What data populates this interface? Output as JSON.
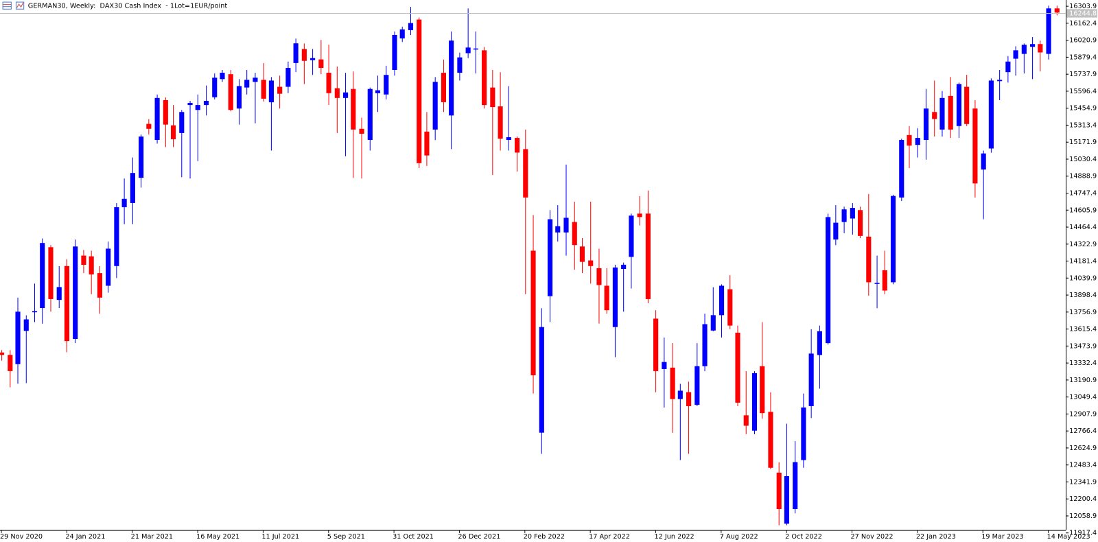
{
  "chart_data": {
    "type": "candlestick",
    "title": "GERMAN30, Weekly:  DAX30 Cash Index  - 1Lot=1EUR/point",
    "categories": [
      "29 Nov 2020",
      null,
      null,
      null,
      null,
      null,
      null,
      null,
      "24 Jan 2021",
      null,
      null,
      null,
      null,
      null,
      null,
      null,
      "21 Mar 2021",
      null,
      null,
      null,
      null,
      null,
      null,
      null,
      "16 May 2021",
      null,
      null,
      null,
      null,
      null,
      null,
      null,
      "11 Jul 2021",
      null,
      null,
      null,
      null,
      null,
      null,
      null,
      "5 Sep 2021",
      null,
      null,
      null,
      null,
      null,
      null,
      null,
      "31 Oct 2021",
      null,
      null,
      null,
      null,
      null,
      null,
      null,
      "26 Dec 2021",
      null,
      null,
      null,
      null,
      null,
      null,
      null,
      "20 Feb 2022",
      null,
      null,
      null,
      null,
      null,
      null,
      null,
      "17 Apr 2022",
      null,
      null,
      null,
      null,
      null,
      null,
      null,
      "12 Jun 2022",
      null,
      null,
      null,
      null,
      null,
      null,
      null,
      "7 Aug 2022",
      null,
      null,
      null,
      null,
      null,
      null,
      null,
      "2 Oct 2022",
      null,
      null,
      null,
      null,
      null,
      null,
      null,
      "27 Nov 2022",
      null,
      null,
      null,
      null,
      null,
      null,
      null,
      "22 Jan 2023",
      null,
      null,
      null,
      null,
      null,
      null,
      null,
      "19 Mar 2023",
      null,
      null,
      null,
      null,
      null,
      null,
      null,
      "14 May 2023",
      null
    ],
    "open": [
      13420,
      13400,
      13323,
      13600,
      13755,
      13790,
      14297,
      13858,
      14140,
      13533,
      14227,
      14221,
      14081,
      13976,
      14140,
      14630,
      14665,
      14875,
      15324,
      15190,
      15522,
      15312,
      15248,
      15481,
      15440,
      15481,
      15546,
      15697,
      15738,
      15452,
      15627,
      15674,
      15691,
      15504,
      15633,
      15633,
      15831,
      15948,
      15855,
      15861,
      15750,
      15621,
      15540,
      15615,
      15283,
      15190,
      15580,
      15569,
      15773,
      16036,
      16105,
      16193,
      15260,
      15277,
      15750,
      15394,
      15750,
      15913,
      15948,
      15937,
      15627,
      15470,
      15190,
      15207,
      15114,
      14268,
      12752,
      13889,
      14420,
      14420,
      14507,
      14303,
      14187,
      14122,
      13976,
      13632,
      14116,
      14216,
      14577,
      14577,
      13702,
      13282,
      13294,
      13032,
      13090,
      12984,
      13306,
      13603,
      13731,
      13947,
      13585,
      12897,
      12769,
      13306,
      12926,
      12419,
      11994,
      12116,
      12524,
      12973,
      13399,
      13498,
      14361,
      14507,
      14536,
      14606,
      14385,
      13993,
      14105,
      14005,
      14711,
      15231,
      15149,
      15190,
      15423,
      15277,
      15557,
      15306,
      15633,
      15452,
      14944,
      15119,
      15680,
      15755,
      15867,
      15907,
      15966,
      15989,
      15907,
      16286
    ],
    "high": [
      13440,
      13440,
      13877,
      13730,
      13994,
      14370,
      14315,
      14139,
      14197,
      14361,
      14274,
      14268,
      14139,
      14344,
      14665,
      14869,
      15044,
      15236,
      15364,
      15569,
      15545,
      15481,
      15440,
      15516,
      15569,
      15644,
      15744,
      15773,
      15773,
      15697,
      15773,
      15749,
      15831,
      15714,
      15726,
      15843,
      16035,
      15994,
      15948,
      16023,
      15983,
      15802,
      15749,
      15761,
      15376,
      15627,
      15726,
      15808,
      16094,
      16134,
      16298,
      16210,
      15423,
      15714,
      15860,
      16094,
      15918,
      16286,
      16094,
      15965,
      15773,
      15755,
      15639,
      15219,
      15277,
      14565,
      13789,
      14606,
      14647,
      14985,
      14676,
      14373,
      14676,
      14285,
      14122,
      14151,
      14169,
      14577,
      14723,
      14769,
      13772,
      13545,
      13498,
      13159,
      13177,
      13498,
      13743,
      13964,
      13988,
      14064,
      13644,
      13264,
      13264,
      13673,
      13089,
      12506,
      12827,
      12681,
      13078,
      13614,
      13644,
      14577,
      14647,
      14635,
      14664,
      14635,
      14740,
      14227,
      14268,
      14734,
      15201,
      15306,
      15289,
      15615,
      15685,
      15598,
      15714,
      15668,
      15732,
      15522,
      15102,
      15703,
      15773,
      15889,
      15971,
      15994,
      16047,
      16018,
      16309,
      16309
    ],
    "low": [
      13352,
      13130,
      13160,
      13165,
      13673,
      13660,
      13760,
      13790,
      13422,
      13498,
      14081,
      13906,
      13743,
      13918,
      14040,
      14489,
      14489,
      14793,
      15236,
      15160,
      15131,
      15131,
      14880,
      14869,
      15014,
      15394,
      15528,
      15674,
      15429,
      15318,
      15569,
      15329,
      15510,
      15102,
      15452,
      15580,
      15755,
      15656,
      15732,
      15738,
      15481,
      15248,
      15055,
      14874,
      14869,
      15102,
      15423,
      15528,
      15726,
      16006,
      16064,
      14956,
      14974,
      15189,
      15423,
      15114,
      15685,
      15872,
      15744,
      15452,
      14898,
      15102,
      15102,
      14927,
      13906,
      13078,
      12576,
      13673,
      14344,
      14227,
      14110,
      14081,
      13994,
      13661,
      13743,
      13381,
      13760,
      13953,
      14478,
      13830,
      13089,
      12961,
      12751,
      12524,
      12576,
      12973,
      13264,
      13597,
      13545,
      13614,
      12973,
      12740,
      12740,
      12868,
      12448,
      11981,
      11981,
      12080,
      12460,
      12874,
      13119,
      13486,
      14314,
      14414,
      14402,
      14373,
      13894,
      13789,
      13906,
      13988,
      14682,
      14956,
      15044,
      15026,
      15219,
      15219,
      15207,
      15207,
      15306,
      14711,
      14530,
      15084,
      15522,
      15668,
      15726,
      15744,
      15697,
      15761,
      15860,
      16228
    ],
    "close": [
      13400,
      13265,
      13760,
      13696,
      13765,
      14332,
      13865,
      13965,
      13515,
      14303,
      14150,
      14070,
      13877,
      14285,
      14630,
      14700,
      14915,
      15219,
      15283,
      15540,
      15318,
      15196,
      15423,
      15499,
      15481,
      15516,
      15709,
      15750,
      15440,
      15639,
      15691,
      15709,
      15534,
      15685,
      15575,
      15790,
      15995,
      15849,
      15872,
      15790,
      15580,
      15540,
      15586,
      15277,
      15242,
      15615,
      15604,
      15732,
      16065,
      16111,
      16164,
      14997,
      15061,
      15674,
      15505,
      16018,
      15878,
      15960,
      15952,
      15481,
      15464,
      15201,
      15213,
      15085,
      14711,
      13230,
      13632,
      14530,
      14472,
      14542,
      14315,
      14175,
      14140,
      13982,
      13772,
      14128,
      14151,
      14560,
      14548,
      13865,
      13265,
      13341,
      13032,
      13102,
      12973,
      13306,
      13656,
      13731,
      13976,
      13644,
      13002,
      12810,
      13248,
      12915,
      12460,
      12116,
      12390,
      12507,
      12962,
      13411,
      13597,
      14548,
      14501,
      14612,
      14624,
      14391,
      14005,
      14000,
      13936,
      14724,
      15190,
      15143,
      15207,
      15452,
      15365,
      15540,
      15277,
      15656,
      15323,
      14828,
      15078,
      15685,
      15691,
      15843,
      15937,
      15983,
      15989,
      15919,
      16286,
      16251
    ],
    "up_color": "#0000ff",
    "down_color": "#ff0000",
    "ylim": [
      11900,
      16356
    ],
    "yticks": [
      16303.9,
      16162.4,
      16020.9,
      15879.4,
      15737.9,
      15596.4,
      15454.9,
      15313.4,
      15171.9,
      15030.4,
      14888.9,
      14747.4,
      14605.9,
      14464.4,
      14322.9,
      14181.4,
      14039.9,
      13898.4,
      13756.9,
      13615.4,
      13473.9,
      13332.4,
      13190.9,
      13049.4,
      12907.9,
      12766.4,
      12624.9,
      12483.4,
      12341.9,
      12200.4,
      12058.9,
      11917.4
    ],
    "current_price": 16244.8
  }
}
